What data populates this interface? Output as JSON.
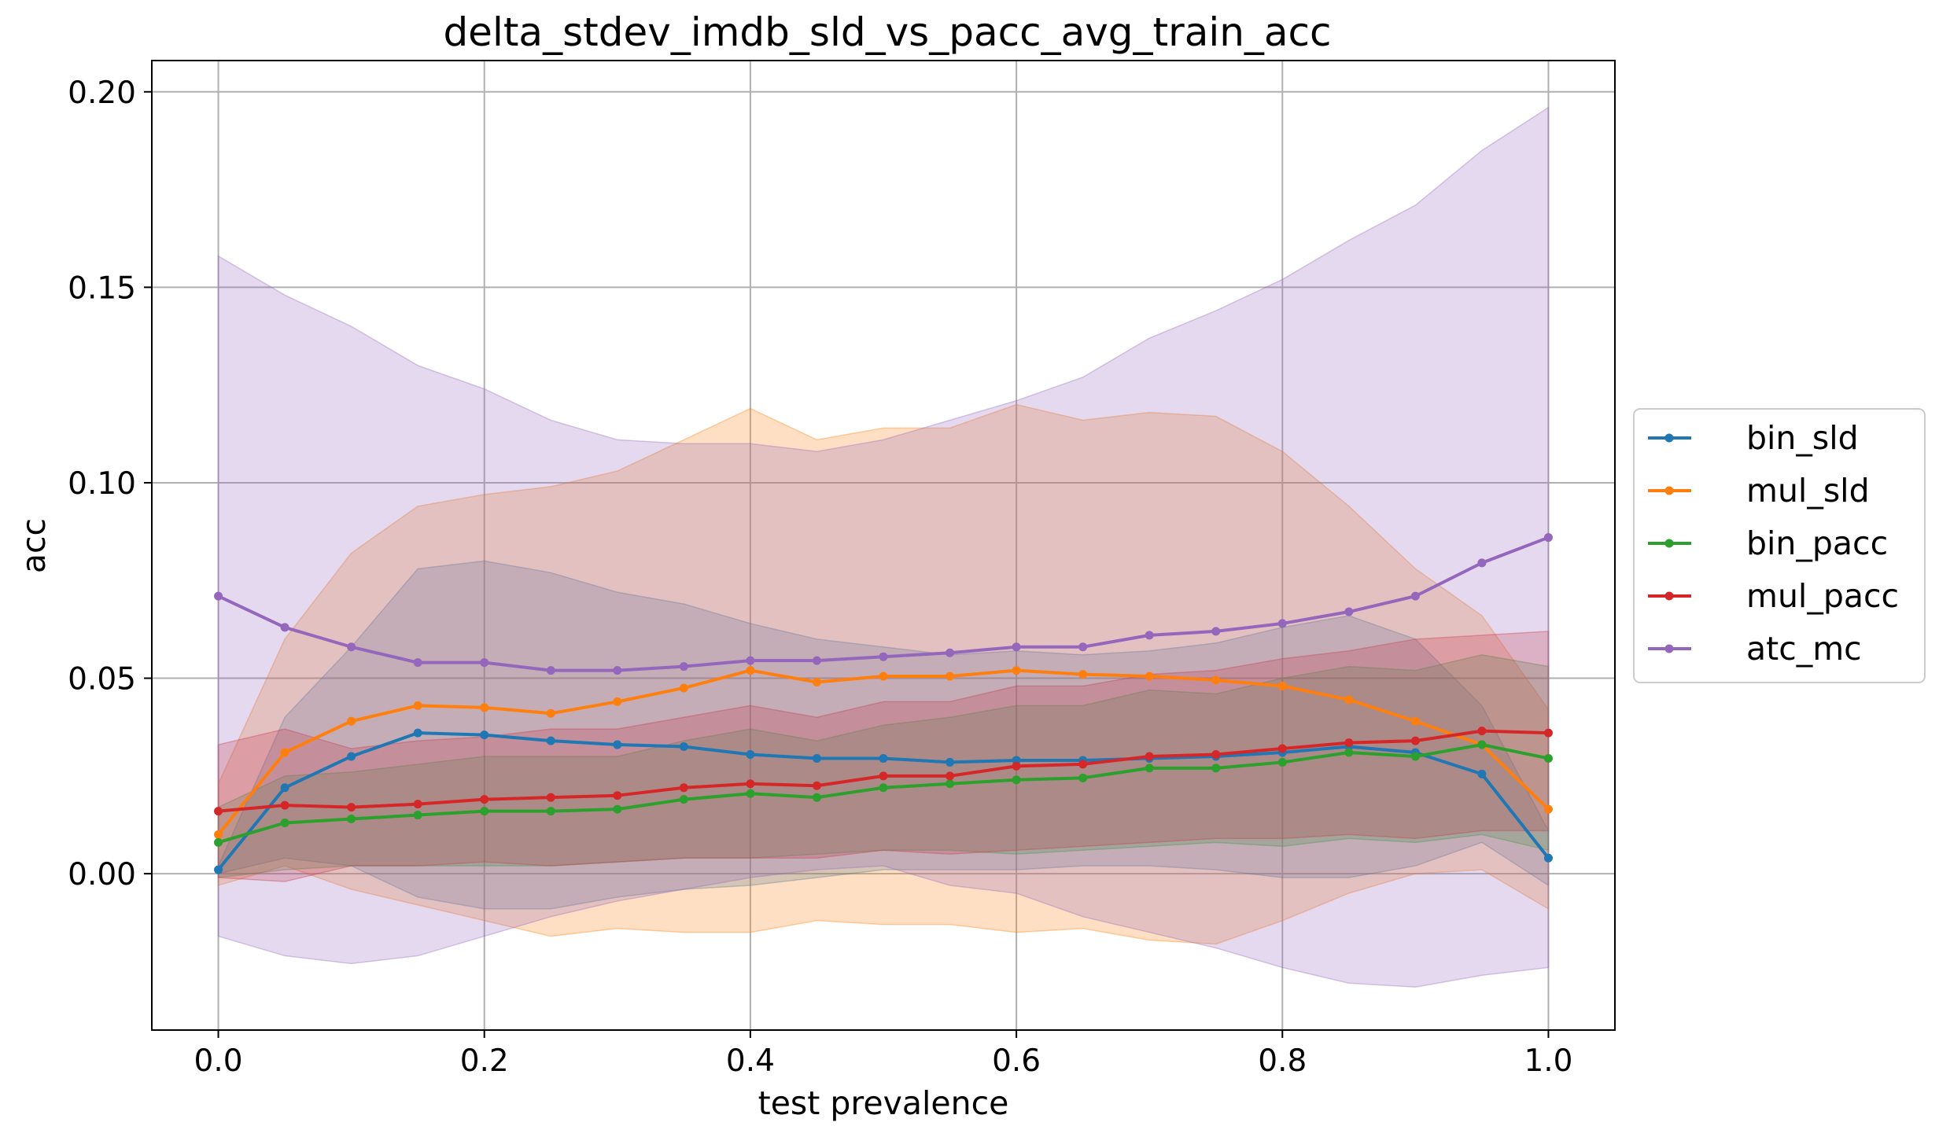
{
  "chart_data": {
    "type": "line",
    "title": "delta_stdev_imdb_sld_vs_pacc_avg_train_acc",
    "xlabel": "test prevalence",
    "ylabel": "acc",
    "xlim": [
      -0.05,
      1.05
    ],
    "ylim": [
      -0.04,
      0.208
    ],
    "xticks": [
      0.0,
      0.2,
      0.4,
      0.6,
      0.8,
      1.0
    ],
    "xtick_labels": [
      "0.0",
      "0.2",
      "0.4",
      "0.6",
      "0.8",
      "1.0"
    ],
    "yticks": [
      0.0,
      0.05,
      0.1,
      0.15,
      0.2
    ],
    "ytick_labels": [
      "0.00",
      "0.05",
      "0.10",
      "0.15",
      "0.20"
    ],
    "grid": true,
    "legend_position": "right-outside",
    "x": [
      0.0,
      0.05,
      0.1,
      0.15,
      0.2,
      0.25,
      0.3,
      0.35,
      0.4,
      0.45,
      0.5,
      0.55,
      0.6,
      0.65,
      0.7,
      0.75,
      0.8,
      0.85,
      0.9,
      0.95,
      1.0
    ],
    "series": [
      {
        "name": "bin_sld",
        "color": "#1f77b4",
        "values": [
          0.001,
          0.022,
          0.03,
          0.036,
          0.0355,
          0.034,
          0.033,
          0.0325,
          0.0305,
          0.0295,
          0.0295,
          0.0285,
          0.029,
          0.029,
          0.0295,
          0.03,
          0.031,
          0.0325,
          0.031,
          0.0255,
          0.004
        ],
        "lower": [
          0.0,
          0.004,
          0.002,
          -0.006,
          -0.009,
          -0.009,
          -0.006,
          -0.004,
          -0.003,
          -0.001,
          0.001,
          0.001,
          0.001,
          0.002,
          0.002,
          0.001,
          -0.001,
          -0.001,
          0.002,
          0.008,
          -0.003
        ],
        "upper": [
          0.002,
          0.04,
          0.058,
          0.078,
          0.08,
          0.077,
          0.072,
          0.069,
          0.064,
          0.06,
          0.058,
          0.056,
          0.057,
          0.056,
          0.057,
          0.059,
          0.063,
          0.066,
          0.06,
          0.043,
          0.011
        ]
      },
      {
        "name": "mul_sld",
        "color": "#ff7f0e",
        "values": [
          0.01,
          0.031,
          0.039,
          0.043,
          0.0425,
          0.041,
          0.044,
          0.0475,
          0.052,
          0.049,
          0.0505,
          0.0505,
          0.052,
          0.051,
          0.0505,
          0.0495,
          0.048,
          0.0445,
          0.039,
          0.033,
          0.0165
        ],
        "lower": [
          -0.003,
          0.002,
          -0.004,
          -0.008,
          -0.012,
          -0.016,
          -0.014,
          -0.015,
          -0.015,
          -0.012,
          -0.013,
          -0.013,
          -0.015,
          -0.014,
          -0.017,
          -0.018,
          -0.012,
          -0.005,
          0.0,
          0.001,
          -0.009
        ],
        "upper": [
          0.023,
          0.06,
          0.082,
          0.094,
          0.097,
          0.099,
          0.103,
          0.111,
          0.119,
          0.111,
          0.114,
          0.114,
          0.12,
          0.116,
          0.118,
          0.117,
          0.108,
          0.094,
          0.078,
          0.066,
          0.042
        ]
      },
      {
        "name": "bin_pacc",
        "color": "#2ca02c",
        "values": [
          0.008,
          0.013,
          0.014,
          0.015,
          0.016,
          0.016,
          0.0165,
          0.019,
          0.0205,
          0.0195,
          0.022,
          0.023,
          0.024,
          0.0245,
          0.027,
          0.027,
          0.0285,
          0.031,
          0.03,
          0.033,
          0.0295
        ],
        "lower": [
          -0.001,
          0.001,
          0.002,
          0.002,
          0.002,
          0.002,
          0.003,
          0.004,
          0.004,
          0.005,
          0.006,
          0.006,
          0.005,
          0.006,
          0.007,
          0.008,
          0.007,
          0.009,
          0.008,
          0.01,
          0.006
        ],
        "upper": [
          0.017,
          0.025,
          0.026,
          0.028,
          0.03,
          0.03,
          0.03,
          0.034,
          0.037,
          0.034,
          0.038,
          0.04,
          0.043,
          0.043,
          0.047,
          0.046,
          0.05,
          0.053,
          0.052,
          0.056,
          0.053
        ]
      },
      {
        "name": "mul_pacc",
        "color": "#d62728",
        "values": [
          0.016,
          0.0175,
          0.017,
          0.0178,
          0.019,
          0.0195,
          0.02,
          0.022,
          0.023,
          0.0225,
          0.025,
          0.025,
          0.0275,
          0.028,
          0.03,
          0.0305,
          0.032,
          0.0335,
          0.034,
          0.0365,
          0.036
        ],
        "lower": [
          -0.001,
          -0.002,
          0.002,
          0.002,
          0.003,
          0.002,
          0.003,
          0.004,
          0.004,
          0.004,
          0.006,
          0.005,
          0.006,
          0.007,
          0.008,
          0.009,
          0.009,
          0.01,
          0.009,
          0.011,
          0.011
        ],
        "upper": [
          0.033,
          0.037,
          0.032,
          0.034,
          0.035,
          0.037,
          0.037,
          0.04,
          0.043,
          0.04,
          0.044,
          0.044,
          0.048,
          0.048,
          0.051,
          0.052,
          0.055,
          0.057,
          0.06,
          0.061,
          0.062
        ]
      },
      {
        "name": "atc_mc",
        "color": "#9467bd",
        "values": [
          0.071,
          0.063,
          0.058,
          0.054,
          0.054,
          0.052,
          0.052,
          0.053,
          0.0545,
          0.0545,
          0.0555,
          0.0565,
          0.058,
          0.058,
          0.061,
          0.062,
          0.064,
          0.067,
          0.071,
          0.0795,
          0.086
        ],
        "lower": [
          -0.016,
          -0.021,
          -0.023,
          -0.021,
          -0.016,
          -0.011,
          -0.007,
          -0.004,
          -0.001,
          0.001,
          0.002,
          -0.003,
          -0.005,
          -0.011,
          -0.015,
          -0.019,
          -0.024,
          -0.028,
          -0.029,
          -0.026,
          -0.024
        ],
        "upper": [
          0.158,
          0.148,
          0.14,
          0.13,
          0.124,
          0.116,
          0.111,
          0.11,
          0.11,
          0.108,
          0.111,
          0.116,
          0.121,
          0.127,
          0.137,
          0.144,
          0.152,
          0.162,
          0.171,
          0.185,
          0.196
        ]
      }
    ]
  }
}
